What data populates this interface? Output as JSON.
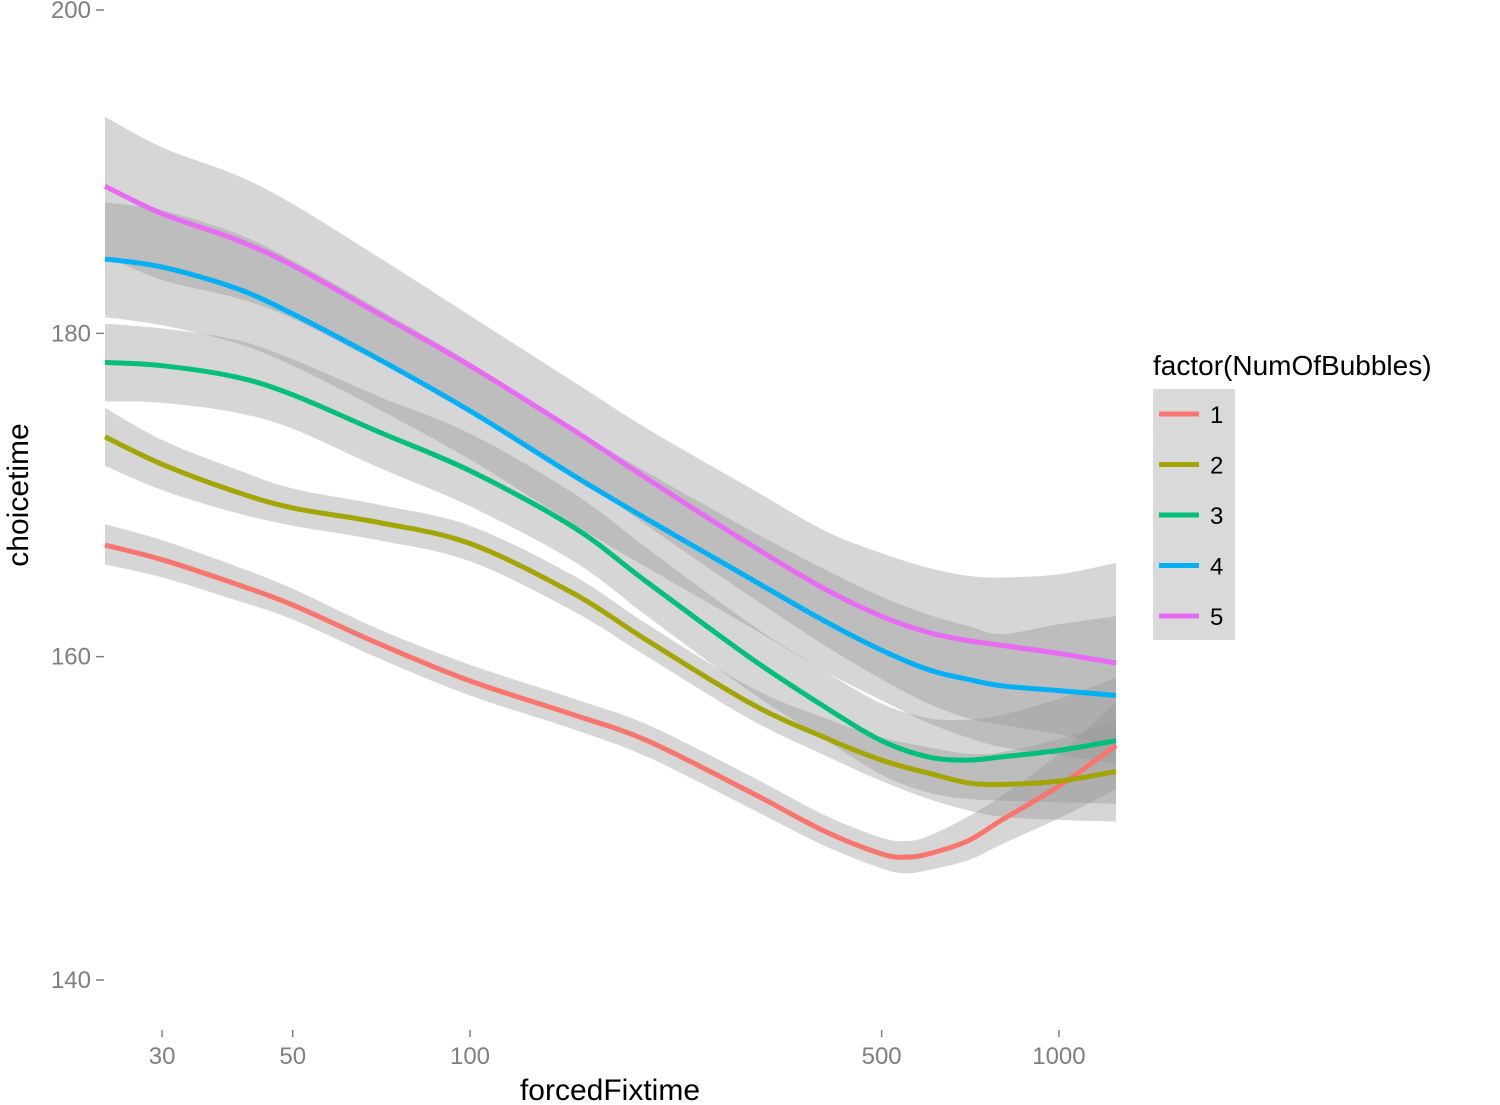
{
  "chart_data": {
    "type": "line",
    "xlabel": "forcedFixtime",
    "ylabel": "choicetime",
    "x_scale": "log10",
    "xlim": [
      24,
      1250
    ],
    "ylim": [
      137,
      200
    ],
    "x_ticks": [
      30,
      50,
      100,
      500,
      1000
    ],
    "x_tick_labels": [
      "30",
      "50",
      "100",
      "500",
      "1000"
    ],
    "y_ticks": [
      140,
      160,
      180,
      200
    ],
    "y_tick_labels": [
      "140",
      "160",
      "180",
      "200"
    ],
    "grid": false,
    "legend": {
      "title": "factor(NumOfBubbles)",
      "position": "right"
    },
    "series": [
      {
        "name": "1",
        "color": "#F8766D",
        "x": [
          24,
          30,
          40,
          50,
          70,
          100,
          150,
          200,
          300,
          400,
          500,
          550,
          600,
          700,
          800,
          1000,
          1250
        ],
        "y": [
          166.9,
          166.0,
          164.5,
          163.2,
          160.8,
          158.5,
          156.4,
          154.8,
          151.6,
          149.2,
          147.8,
          147.6,
          147.8,
          148.6,
          149.9,
          152.0,
          154.5
        ],
        "lower": [
          165.7,
          164.9,
          163.5,
          162.3,
          159.9,
          157.6,
          155.5,
          153.8,
          150.6,
          148.3,
          146.9,
          146.6,
          146.8,
          147.4,
          148.4,
          150.0,
          151.8
        ],
        "upper": [
          168.2,
          167.2,
          165.6,
          164.2,
          161.7,
          159.5,
          157.4,
          155.8,
          152.6,
          150.2,
          148.8,
          148.6,
          148.9,
          150.1,
          151.4,
          154.0,
          157.2
        ]
      },
      {
        "name": "2",
        "color": "#A3A500",
        "x": [
          24,
          30,
          40,
          50,
          70,
          100,
          150,
          200,
          300,
          400,
          500,
          600,
          700,
          800,
          1000,
          1250
        ],
        "y": [
          173.6,
          171.9,
          170.2,
          169.2,
          168.3,
          167.0,
          163.9,
          161.0,
          157.1,
          155.0,
          153.6,
          152.8,
          152.2,
          152.1,
          152.3,
          152.9
        ],
        "lower": [
          171.8,
          170.3,
          168.9,
          168.1,
          167.2,
          165.9,
          162.8,
          160.0,
          156.1,
          153.9,
          152.3,
          151.2,
          150.5,
          150.1,
          149.9,
          149.8
        ],
        "upper": [
          175.4,
          173.4,
          171.6,
          170.4,
          169.4,
          168.1,
          165.0,
          162.0,
          158.1,
          156.2,
          155.0,
          154.4,
          154.0,
          154.1,
          154.9,
          156.0
        ]
      },
      {
        "name": "3",
        "color": "#00BF7D",
        "x": [
          24,
          30,
          40,
          50,
          70,
          100,
          150,
          200,
          300,
          400,
          500,
          600,
          700,
          800,
          1000,
          1250
        ],
        "y": [
          178.2,
          178.0,
          177.3,
          176.2,
          173.9,
          171.5,
          168.0,
          164.6,
          159.9,
          156.9,
          154.8,
          153.8,
          153.6,
          153.8,
          154.2,
          154.8
        ],
        "lower": [
          175.8,
          175.7,
          175.1,
          174.1,
          171.7,
          169.3,
          165.9,
          162.5,
          157.8,
          154.9,
          152.7,
          151.6,
          151.2,
          151.1,
          151.0,
          150.9
        ],
        "upper": [
          180.6,
          180.3,
          179.6,
          178.4,
          176.1,
          173.8,
          170.1,
          166.7,
          162.0,
          159.1,
          157.1,
          156.2,
          156.1,
          156.4,
          157.4,
          158.7
        ]
      },
      {
        "name": "4",
        "color": "#00B0F6",
        "x": [
          24,
          30,
          40,
          50,
          70,
          100,
          150,
          200,
          300,
          400,
          500,
          600,
          700,
          800,
          1000,
          1250
        ],
        "y": [
          184.6,
          184.1,
          182.8,
          181.2,
          178.4,
          175.2,
          171.2,
          168.5,
          164.8,
          162.2,
          160.4,
          159.2,
          158.6,
          158.2,
          157.9,
          157.6
        ],
        "lower": [
          181.0,
          180.5,
          179.4,
          178.0,
          175.3,
          172.2,
          168.2,
          165.5,
          161.8,
          159.1,
          157.3,
          155.9,
          155.0,
          154.4,
          153.9,
          153.4
        ],
        "upper": [
          188.1,
          187.6,
          186.2,
          184.5,
          181.5,
          178.2,
          174.1,
          171.4,
          167.8,
          165.4,
          163.7,
          162.6,
          161.9,
          161.4,
          162.0,
          162.5
        ]
      },
      {
        "name": "5",
        "color": "#E76BF3",
        "x": [
          24,
          30,
          40,
          50,
          70,
          100,
          150,
          200,
          300,
          400,
          500,
          600,
          700,
          800,
          1000,
          1250
        ],
        "y": [
          189.1,
          187.4,
          185.8,
          184.2,
          181.2,
          178.0,
          174.0,
          171.0,
          166.9,
          164.2,
          162.5,
          161.5,
          161.0,
          160.7,
          160.2,
          159.6
        ],
        "lower": [
          184.8,
          183.3,
          182.2,
          180.9,
          178.2,
          175.3,
          171.3,
          168.1,
          163.7,
          160.7,
          158.6,
          157.1,
          156.2,
          155.8,
          155.2,
          154.4
        ],
        "upper": [
          193.4,
          191.5,
          189.8,
          188.0,
          184.7,
          181.1,
          177.0,
          174.1,
          170.4,
          167.8,
          166.4,
          165.5,
          165.0,
          164.9,
          165.1,
          165.8
        ]
      }
    ]
  }
}
